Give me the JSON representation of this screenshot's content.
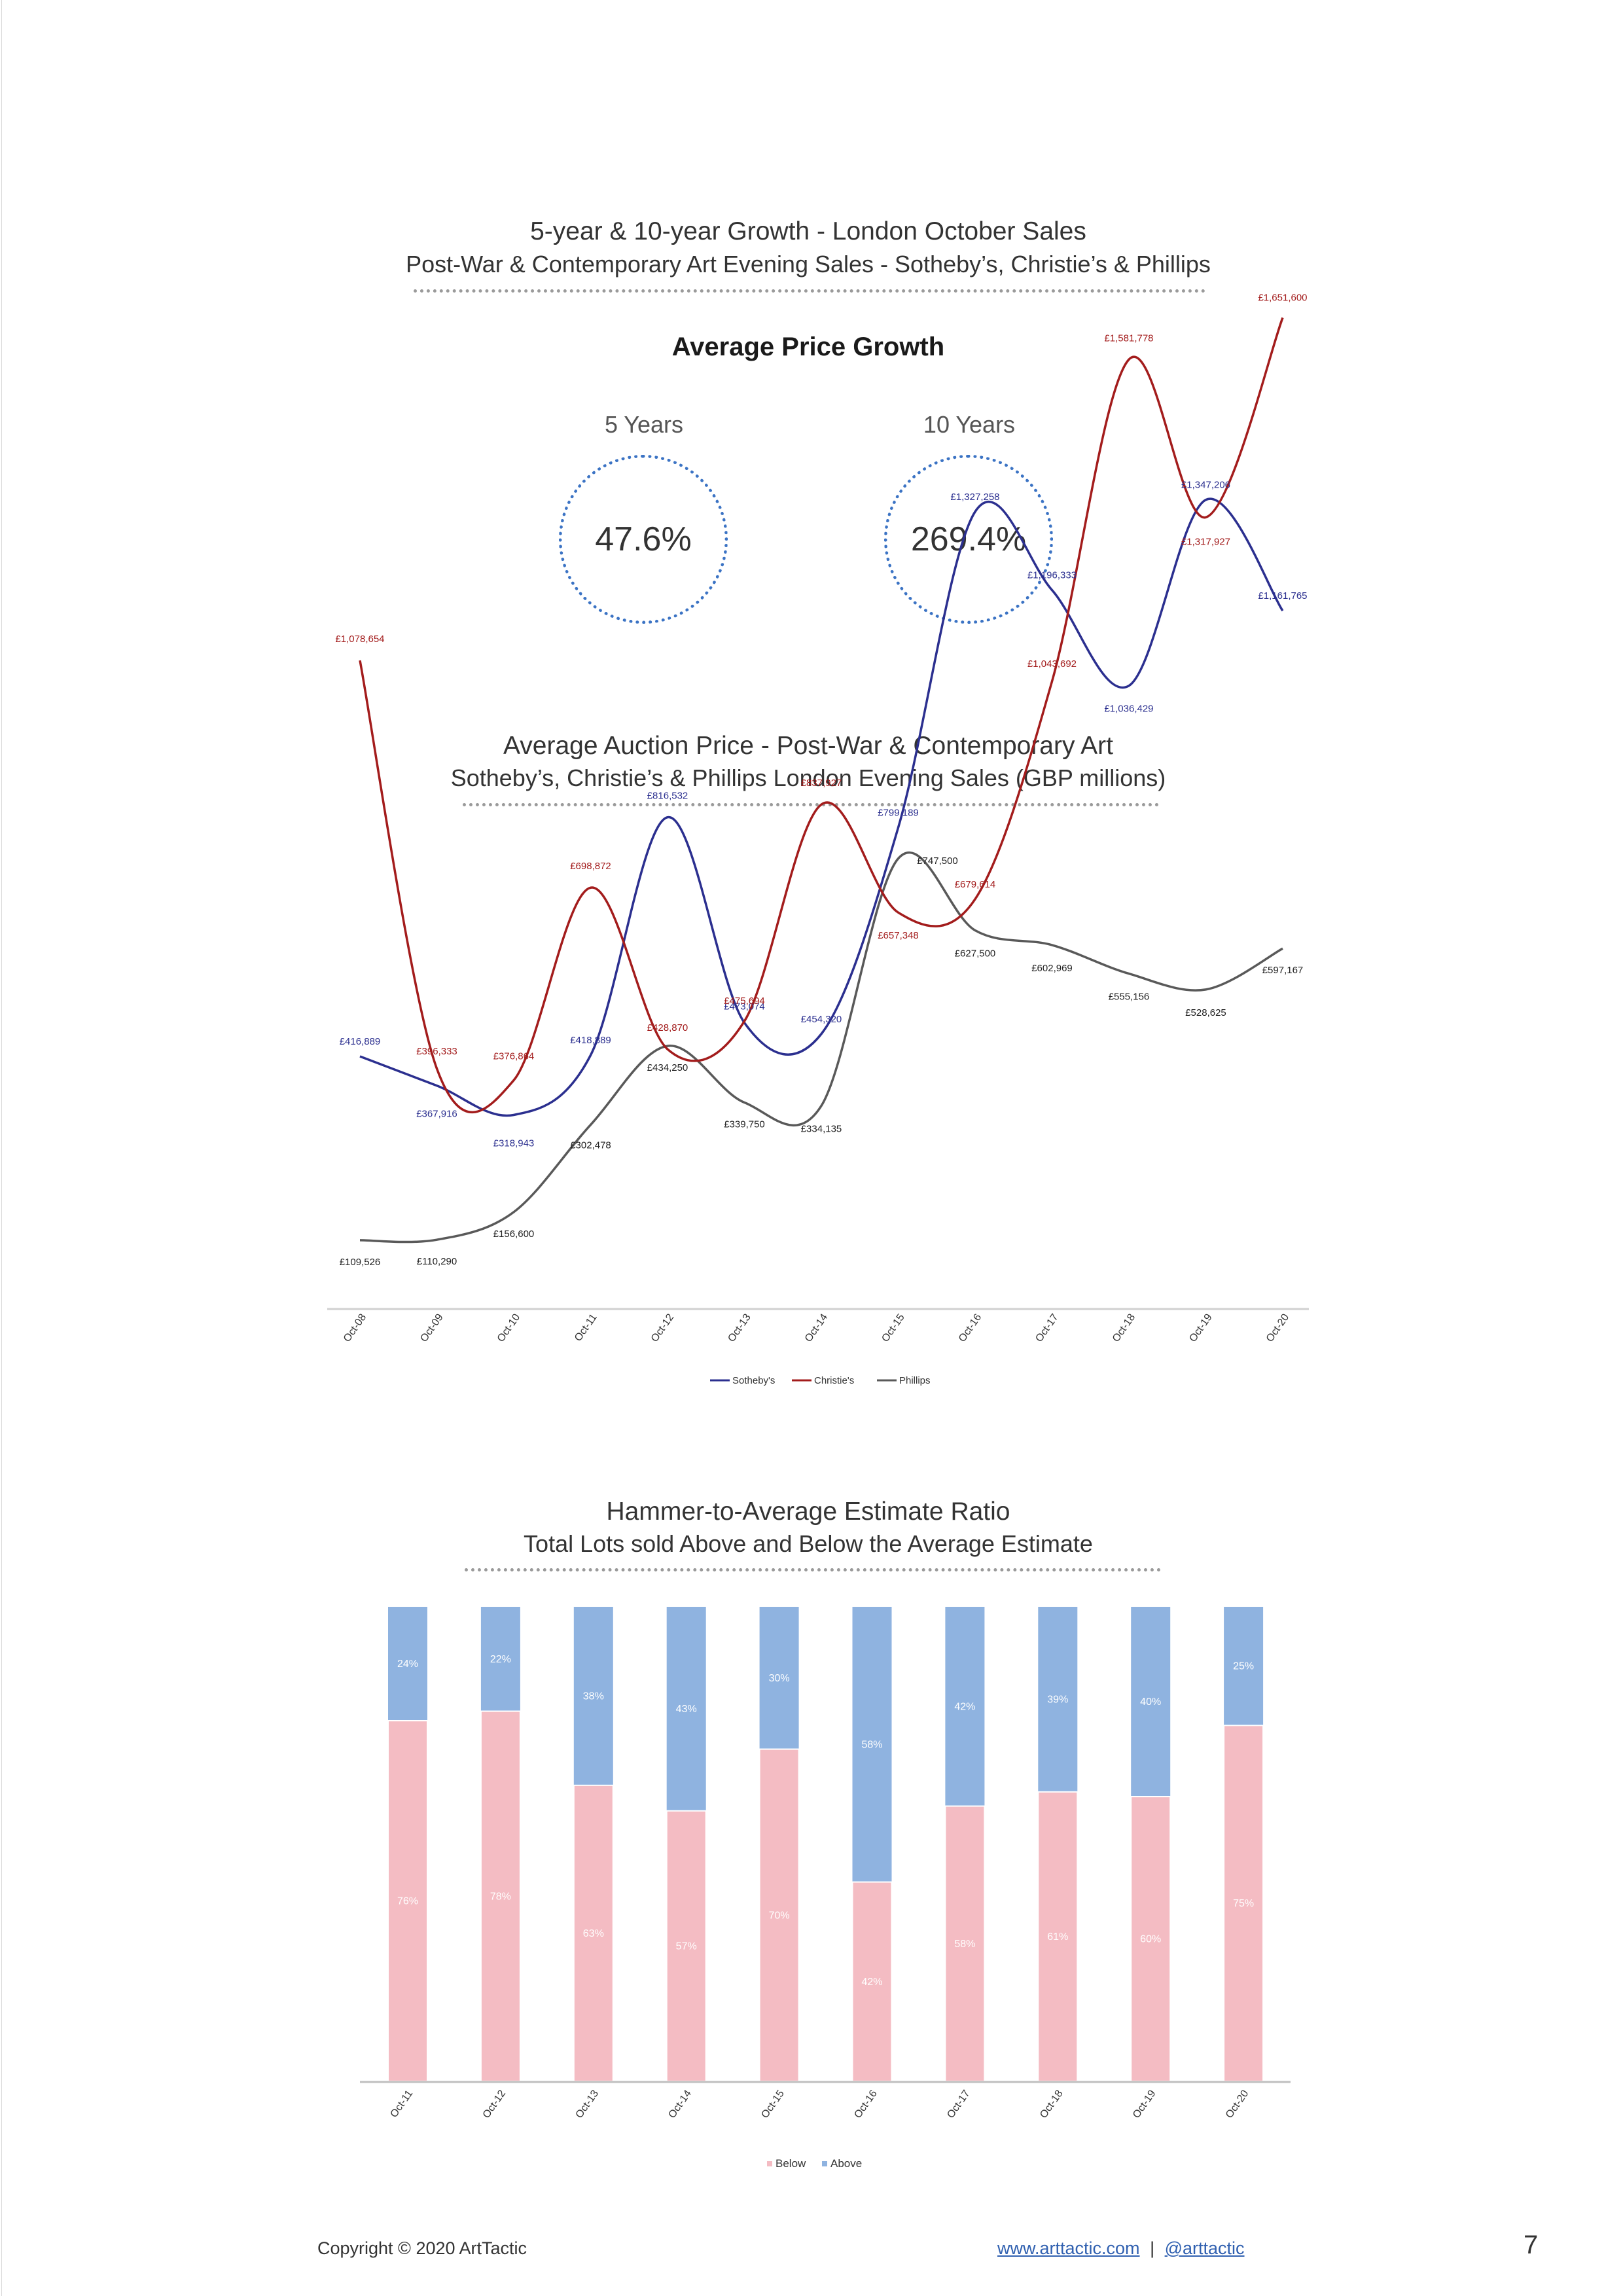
{
  "growth": {
    "title": "5-year & 10-year Growth - London October Sales",
    "subtitle": "Post-War & Contemporary Art Evening Sales - Sotheby’s, Christie’s & Phillips",
    "heading": "Average Price Growth",
    "five": {
      "label": "5 Years",
      "value": "47.6%"
    },
    "ten": {
      "label": "10 Years",
      "value": "269.4%"
    }
  },
  "line_section": {
    "title": "Average Auction Price - Post-War & Contemporary Art",
    "subtitle": "Sotheby’s, Christie’s & Phillips London Evening Sales (GBP millions)"
  },
  "bar_section": {
    "title": "Hammer-to-Average Estimate Ratio",
    "subtitle": "Total Lots sold Above and Below the Average Estimate"
  },
  "colors": {
    "sothebys": "#2b2f8f",
    "christies": "#a31c1c",
    "phillips": "#595959",
    "below": "#f4bcc3",
    "above": "#8fb3e0"
  },
  "chart_data": [
    {
      "type": "line",
      "categories": [
        "Oct-08",
        "Oct-09",
        "Oct-10",
        "Oct-11",
        "Oct-12",
        "Oct-13",
        "Oct-14",
        "Oct-15",
        "Oct-16",
        "Oct-17",
        "Oct-18",
        "Oct-19",
        "Oct-20"
      ],
      "series": [
        {
          "name": "Sotheby's",
          "values": [
            416889,
            367916,
            318943,
            418889,
            816532,
            473074,
            454320,
            799189,
            1327258,
            1196333,
            1036429,
            1347206,
            1161765
          ],
          "labels": [
            "£416,889",
            "£367,916",
            "£318,943",
            "£418,889",
            "£816,532",
            "£473,074",
            "£454,320",
            "£799,189",
            "£1,327,258",
            "£1,196,333",
            "£1,036,429",
            "£1,347,206",
            "£1,161,765"
          ]
        },
        {
          "name": "Christie's",
          "values": [
            1078654,
            396333,
            376864,
            698872,
            428870,
            475694,
            837927,
            657348,
            679614,
            1043692,
            1581778,
            1317927,
            1651600
          ],
          "labels": [
            "£1,078,654",
            "£396,333",
            "£376,864",
            "£698,872",
            "£428,870",
            "£475,694",
            "£837,927",
            "£657,348",
            "£679,614",
            "£1,043,692",
            "£1,581,778",
            "£1,317,927",
            "£1,651,600"
          ]
        },
        {
          "name": "Phillips",
          "values": [
            109526,
            110290,
            156600,
            302478,
            434250,
            339750,
            334135,
            747500,
            627500,
            602969,
            555156,
            528625,
            597167
          ],
          "labels": [
            "£109,526",
            "£110,290",
            "£156,600",
            "£302,478",
            "£434,250",
            "£339,750",
            "£334,135",
            "£747,500",
            "£627,500",
            "£602,969",
            "£555,156",
            "£528,625",
            "£597,167"
          ]
        }
      ],
      "legend": "bottom"
    },
    {
      "type": "bar",
      "stacked": true,
      "categories": [
        "Oct-11",
        "Oct-12",
        "Oct-13",
        "Oct-14",
        "Oct-15",
        "Oct-16",
        "Oct-17",
        "Oct-18",
        "Oct-19",
        "Oct-20"
      ],
      "series": [
        {
          "name": "Below",
          "values": [
            76,
            78,
            63,
            57,
            70,
            42,
            58,
            61,
            60,
            75
          ],
          "labels": [
            "76%",
            "78%",
            "63%",
            "57%",
            "70%",
            "42%",
            "58%",
            "61%",
            "60%",
            "75%"
          ]
        },
        {
          "name": "Above",
          "values": [
            24,
            22,
            38,
            43,
            30,
            58,
            42,
            39,
            40,
            25
          ],
          "labels": [
            "24%",
            "22%",
            "38%",
            "43%",
            "30%",
            "58%",
            "42%",
            "39%",
            "40%",
            "25%"
          ]
        }
      ],
      "legend": "bottom"
    }
  ],
  "footer": {
    "copyright": "Copyright © 2020 ArtTactic",
    "website": "www.arttactic.com",
    "separator": "|",
    "handle": "@arttactic",
    "page": "7"
  }
}
